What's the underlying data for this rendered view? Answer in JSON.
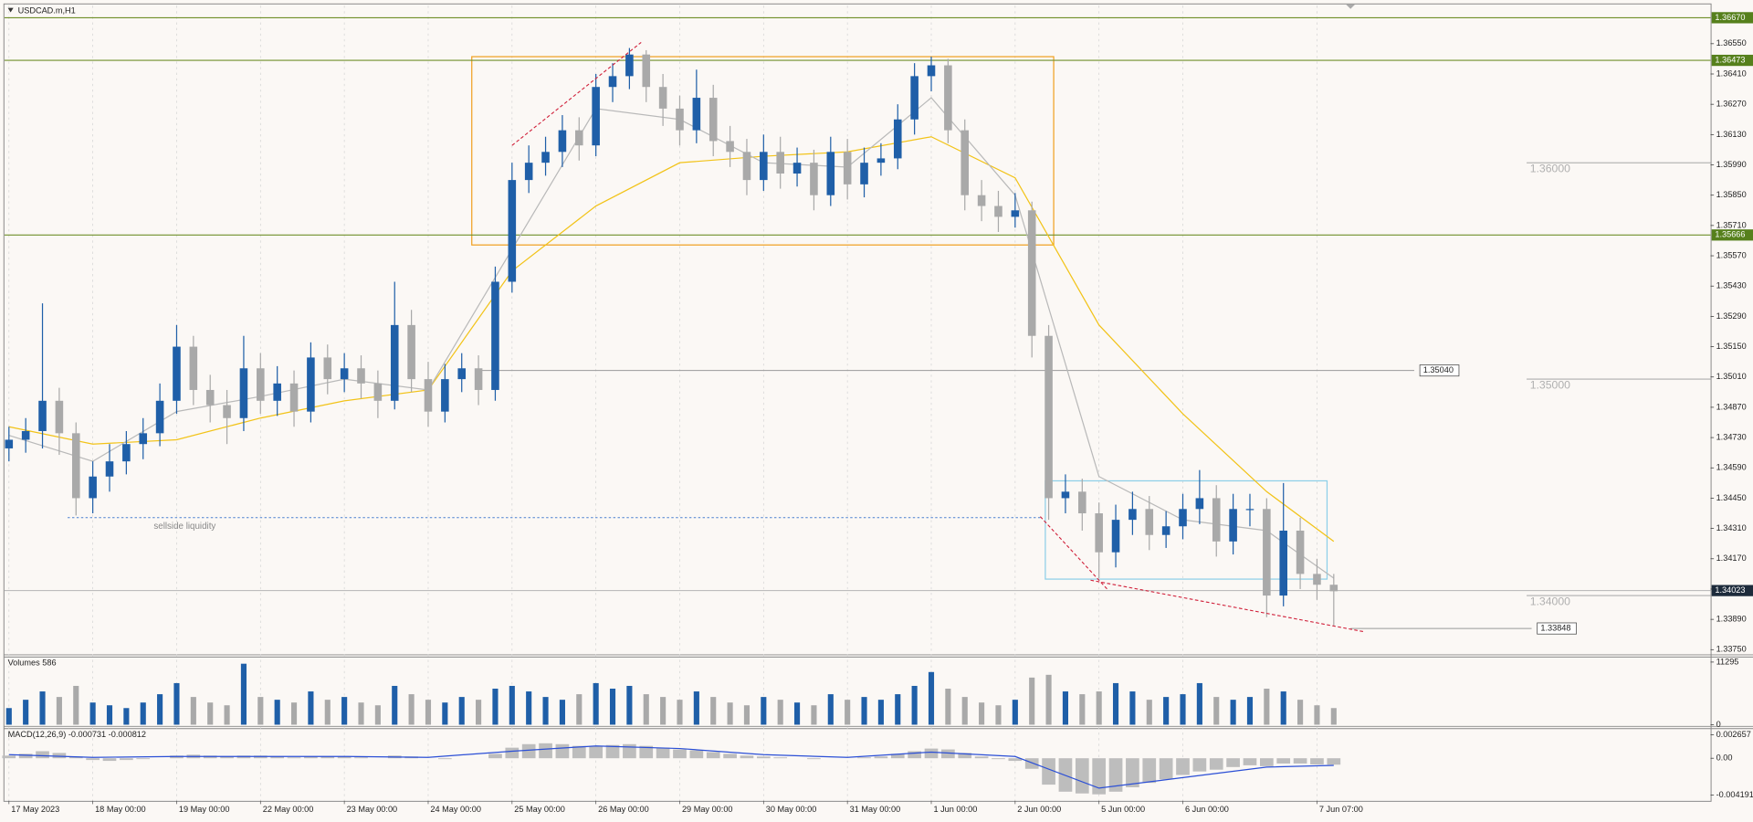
{
  "chart_data": {
    "type": "candlestick",
    "title": "USDCAD.m,H1",
    "categories": [
      "17 May 2023",
      null,
      null,
      null,
      null,
      "18 May 00:00",
      null,
      null,
      null,
      null,
      "19 May 00:00",
      null,
      null,
      null,
      null,
      "22 May 00:00",
      null,
      null,
      null,
      null,
      "23 May 00:00",
      null,
      null,
      null,
      null,
      "24 May 00:00",
      null,
      null,
      null,
      null,
      "25 May 00:00",
      null,
      null,
      null,
      null,
      "26 May 00:00",
      null,
      null,
      null,
      null,
      "29 May 00:00",
      null,
      null,
      null,
      null,
      "30 May 00:00",
      null,
      null,
      null,
      null,
      "31 May 00:00",
      null,
      null,
      null,
      null,
      "1 Jun 00:00",
      null,
      null,
      null,
      null,
      "2 Jun 00:00",
      null,
      null,
      null,
      null,
      "5 Jun 00:00",
      null,
      null,
      null,
      null,
      "6 Jun 00:00",
      null,
      null,
      null,
      null,
      null,
      null,
      null,
      "7 Jun 07:00",
      null
    ],
    "open": [
      1.3468,
      1.3472,
      1.3476,
      1.349,
      1.3475,
      1.3445,
      1.3455,
      1.3462,
      1.347,
      1.3475,
      1.349,
      1.3515,
      1.3495,
      1.3488,
      1.3482,
      1.3505,
      1.349,
      1.3498,
      1.3485,
      1.351,
      1.35,
      1.3505,
      1.3498,
      1.349,
      1.3525,
      1.35,
      1.3485,
      1.35,
      1.3505,
      1.3495,
      1.3545,
      1.3592,
      1.36,
      1.3605,
      1.3615,
      1.3608,
      1.3635,
      1.364,
      1.365,
      1.3635,
      1.3625,
      1.3615,
      1.363,
      1.361,
      1.3605,
      1.3592,
      1.3605,
      1.3595,
      1.36,
      1.3585,
      1.3605,
      1.359,
      1.36,
      1.3602,
      1.362,
      1.364,
      1.3645,
      1.3615,
      1.3585,
      1.358,
      1.3575,
      1.3578,
      1.352,
      1.3445,
      1.3448,
      1.3438,
      1.342,
      1.3435,
      1.344,
      1.3428,
      1.3432,
      1.344,
      1.3445,
      1.3425,
      1.344,
      1.344,
      1.34,
      1.343,
      1.341,
      1.3405
    ],
    "high": [
      1.3478,
      1.3482,
      1.3535,
      1.3496,
      1.348,
      1.3462,
      1.347,
      1.3476,
      1.3482,
      1.3498,
      1.3525,
      1.352,
      1.3502,
      1.3495,
      1.352,
      1.3512,
      1.3506,
      1.3504,
      1.3517,
      1.3516,
      1.3512,
      1.3511,
      1.3504,
      1.3545,
      1.3532,
      1.3508,
      1.3507,
      1.3512,
      1.3511,
      1.3552,
      1.36,
      1.3608,
      1.3612,
      1.3622,
      1.3621,
      1.3641,
      1.3646,
      1.3653,
      1.3652,
      1.3641,
      1.3631,
      1.3643,
      1.3636,
      1.3617,
      1.3611,
      1.3613,
      1.3612,
      1.3607,
      1.3606,
      1.3612,
      1.3611,
      1.3607,
      1.3609,
      1.3627,
      1.3646,
      1.3649,
      1.3648,
      1.362,
      1.3592,
      1.3587,
      1.3586,
      1.3582,
      1.3525,
      1.3456,
      1.3454,
      1.3443,
      1.3442,
      1.3448,
      1.3446,
      1.3439,
      1.3447,
      1.3458,
      1.3451,
      1.3447,
      1.3447,
      1.3445,
      1.3452,
      1.3436,
      1.3417,
      1.341
    ],
    "low": [
      1.3462,
      1.3466,
      1.3468,
      1.3465,
      1.3437,
      1.3438,
      1.3448,
      1.3456,
      1.3463,
      1.3469,
      1.3484,
      1.3488,
      1.348,
      1.347,
      1.3476,
      1.3484,
      1.3483,
      1.3478,
      1.348,
      1.3493,
      1.3494,
      1.3491,
      1.3482,
      1.3486,
      1.3494,
      1.3478,
      1.348,
      1.3494,
      1.3488,
      1.349,
      1.354,
      1.3586,
      1.3594,
      1.3598,
      1.3601,
      1.3603,
      1.3628,
      1.3634,
      1.3628,
      1.3617,
      1.3608,
      1.3609,
      1.3603,
      1.3598,
      1.3585,
      1.3587,
      1.3588,
      1.3589,
      1.3578,
      1.358,
      1.3583,
      1.3584,
      1.3594,
      1.3597,
      1.3613,
      1.3633,
      1.3609,
      1.3578,
      1.3573,
      1.3568,
      1.357,
      1.351,
      1.3435,
      1.3438,
      1.343,
      1.3408,
      1.3413,
      1.3428,
      1.3421,
      1.3422,
      1.3426,
      1.3433,
      1.3418,
      1.3419,
      1.3432,
      1.339,
      1.3395,
      1.3403,
      1.3398,
      1.3386
    ],
    "close": [
      1.3472,
      1.3476,
      1.349,
      1.3475,
      1.3445,
      1.3455,
      1.3462,
      1.347,
      1.3475,
      1.349,
      1.3515,
      1.3495,
      1.3488,
      1.3482,
      1.3505,
      1.349,
      1.3498,
      1.3485,
      1.351,
      1.35,
      1.3505,
      1.3498,
      1.349,
      1.3525,
      1.35,
      1.3485,
      1.35,
      1.3505,
      1.3495,
      1.3545,
      1.3592,
      1.36,
      1.3605,
      1.3615,
      1.3608,
      1.3635,
      1.364,
      1.365,
      1.3635,
      1.3625,
      1.3615,
      1.363,
      1.361,
      1.3605,
      1.3592,
      1.3605,
      1.3595,
      1.36,
      1.3585,
      1.3605,
      1.359,
      1.36,
      1.3602,
      1.362,
      1.364,
      1.3645,
      1.3615,
      1.3585,
      1.358,
      1.3575,
      1.3578,
      1.352,
      1.3445,
      1.3448,
      1.3438,
      1.342,
      1.3435,
      1.344,
      1.3428,
      1.3432,
      1.344,
      1.3445,
      1.3425,
      1.344,
      1.344,
      1.34,
      1.343,
      1.341,
      1.3405,
      1.3402
    ],
    "up_color": "#1f5fa8",
    "down_color": "#a9a9a9",
    "ylim": [
      1.33734,
      1.36726
    ],
    "yticks": [
      {
        "value": 1.3655,
        "label": "1.36550"
      },
      {
        "value": 1.3641,
        "label": "1.36410"
      },
      {
        "value": 1.3627,
        "label": "1.36270"
      },
      {
        "value": 1.3613,
        "label": "1.36130"
      },
      {
        "value": 1.3599,
        "label": "1.35990"
      },
      {
        "value": 1.3585,
        "label": "1.35850"
      },
      {
        "value": 1.3571,
        "label": "1.35710"
      },
      {
        "value": 1.3557,
        "label": "1.35570"
      },
      {
        "value": 1.3543,
        "label": "1.35430"
      },
      {
        "value": 1.3529,
        "label": "1.35290"
      },
      {
        "value": 1.3515,
        "label": "1.35150"
      },
      {
        "value": 1.3501,
        "label": "1.35010"
      },
      {
        "value": 1.3487,
        "label": "1.34870"
      },
      {
        "value": 1.3473,
        "label": "1.34730"
      },
      {
        "value": 1.3459,
        "label": "1.34590"
      },
      {
        "value": 1.3445,
        "label": "1.34450"
      },
      {
        "value": 1.3431,
        "label": "1.34310"
      },
      {
        "value": 1.3417,
        "label": "1.34170"
      },
      {
        "value": 1.3403,
        "label": "1.34030"
      },
      {
        "value": 1.3389,
        "label": "1.33890"
      },
      {
        "value": 1.3375,
        "label": "1.33750"
      }
    ],
    "grid": true,
    "overlays": [
      {
        "color": "#f2c318",
        "x": [
          0,
          5,
          10,
          15,
          20,
          25,
          30,
          35,
          40,
          45,
          50,
          55,
          60,
          65,
          70,
          75,
          79
        ],
        "values": [
          1.3478,
          1.347,
          1.3472,
          1.3482,
          1.349,
          1.3495,
          1.355,
          1.358,
          1.36,
          1.3603,
          1.3605,
          1.3612,
          1.3593,
          1.3525,
          1.3484,
          1.3448,
          1.3425
        ]
      },
      {
        "color": "#b9b9b9",
        "x": [
          0,
          5,
          10,
          15,
          20,
          25,
          30,
          35,
          40,
          45,
          50,
          55,
          60,
          65,
          70,
          75,
          79
        ],
        "values": [
          1.3474,
          1.3462,
          1.3485,
          1.3492,
          1.35,
          1.3495,
          1.356,
          1.3625,
          1.362,
          1.36,
          1.3598,
          1.363,
          1.3585,
          1.3455,
          1.3435,
          1.343,
          1.3408
        ]
      }
    ],
    "zones": [
      {
        "color": "#f0a020",
        "x": [
          27.6,
          62.3
        ],
        "y": [
          1.3649,
          1.3562
        ]
      },
      {
        "color": "#8ccfe8",
        "x": [
          61.8,
          78.6
        ],
        "y": [
          1.3453,
          1.34076
        ]
      }
    ],
    "trendlines": [
      {
        "color": "#d0203a",
        "x": [
          30,
          37.7
        ],
        "y": [
          1.3608,
          1.36556
        ]
      },
      {
        "color": "#d0203a",
        "x": [
          61.5,
          65.5
        ],
        "y": [
          1.34365,
          1.34029
        ]
      },
      {
        "color": "#d0203a",
        "x": [
          64.5,
          80.8
        ],
        "y": [
          1.34071,
          1.33833
        ]
      }
    ],
    "levels": [
      {
        "value": 1.3667,
        "label": "1.36670",
        "style": "green"
      },
      {
        "value": 1.36473,
        "label": "1.36473",
        "style": "green"
      },
      {
        "value": 1.35666,
        "label": "1.35666",
        "style": "green"
      },
      {
        "value": 1.34023,
        "label": "1.34023",
        "style": "current"
      },
      {
        "value": 1.3504,
        "label": "1.35040",
        "style": "box",
        "x": [
          28.1,
          83.8
        ]
      },
      {
        "value": 1.33848,
        "label": "1.33848",
        "style": "box",
        "x": [
          80,
          90.8
        ]
      },
      {
        "value": 1.36,
        "label": "1.36000",
        "style": "round",
        "x": [
          90.5,
          101.5
        ]
      },
      {
        "value": 1.35,
        "label": "1.35000",
        "style": "round",
        "x": [
          90.5,
          101.5
        ]
      },
      {
        "value": 1.34,
        "label": "1.34000",
        "style": "round",
        "x": [
          90.5,
          101.5
        ]
      }
    ],
    "annotation": {
      "text": "sellside liquidity",
      "x": [
        3.5,
        61.5
      ],
      "y": 1.3436,
      "color": "#4a7fd0"
    },
    "panels": [
      {
        "type": "bar",
        "title": "Volumes 586",
        "ylim": [
          0,
          11295
        ],
        "yticks": [
          0,
          11295
        ],
        "values": [
          3000,
          4500,
          6000,
          5000,
          7000,
          4000,
          3500,
          3000,
          4000,
          5500,
          7500,
          5000,
          4000,
          3500,
          11000,
          5000,
          4500,
          4000,
          6000,
          4500,
          5000,
          4000,
          3500,
          7000,
          5500,
          4500,
          4000,
          5000,
          4500,
          6500,
          7000,
          6000,
          5000,
          4500,
          5500,
          7500,
          6500,
          7000,
          5500,
          5000,
          4500,
          6000,
          5000,
          4000,
          3500,
          5000,
          4500,
          4000,
          3500,
          5500,
          4500,
          5000,
          4500,
          5500,
          7000,
          9500,
          6500,
          5000,
          4000,
          3500,
          4500,
          8500,
          9000,
          6000,
          5500,
          6000,
          7500,
          6000,
          4500,
          5000,
          5500,
          7500,
          5000,
          4500,
          5000,
          6500,
          6000,
          4500,
          3500,
          3000
        ]
      },
      {
        "type": "macd",
        "title": "MACD(12,26,9) -0.000731 -0.000812",
        "ylim": [
          -0.00483,
          0.00343
        ],
        "yticks": [
          0.002657,
          {
            "value": 0,
            "label": "0.00"
          },
          -0.004191
        ],
        "color": "#bdbdbd",
        "values": [
          0.0003,
          0.0005,
          0.0008,
          0.0006,
          0.0002,
          -0.0002,
          -0.0003,
          -0.0002,
          -0.0001,
          0.0,
          0.0003,
          0.0004,
          0.0003,
          0.0002,
          0.0003,
          0.0003,
          0.0002,
          0.0001,
          0.0002,
          0.0002,
          0.0002,
          0.0001,
          0.0,
          0.0003,
          0.0002,
          0.0,
          -0.0001,
          0.0,
          0.0,
          0.0005,
          0.0012,
          0.0016,
          0.0017,
          0.0016,
          0.0014,
          0.0014,
          0.0015,
          0.0016,
          0.0014,
          0.0012,
          0.001,
          0.0009,
          0.0007,
          0.0005,
          0.0003,
          0.0002,
          0.0001,
          0.0,
          -0.0001,
          0.0,
          0.0,
          0.0001,
          0.0002,
          0.0005,
          0.0008,
          0.0011,
          0.001,
          0.0006,
          0.0002,
          -0.0001,
          -0.0003,
          -0.0012,
          -0.003,
          -0.0038,
          -0.004,
          -0.0041,
          -0.0038,
          -0.0033,
          -0.0028,
          -0.0024,
          -0.0019,
          -0.0015,
          -0.0013,
          -0.001,
          -0.0008,
          -0.0009,
          -0.0006,
          -0.0006,
          -0.0007,
          -0.000731
        ],
        "signal": {
          "color": "#2b4fd6",
          "x": [
            0,
            5,
            10,
            15,
            20,
            25,
            30,
            35,
            40,
            45,
            50,
            55,
            60,
            65,
            70,
            75,
            79
          ],
          "values": [
            0.0004,
            0.0001,
            0.0002,
            0.0002,
            0.0002,
            0.0001,
            0.0008,
            0.0014,
            0.0011,
            0.0004,
            0.0001,
            0.0007,
            0.0002,
            -0.0034,
            -0.0022,
            -0.001,
            -0.000812
          ]
        }
      }
    ]
  }
}
